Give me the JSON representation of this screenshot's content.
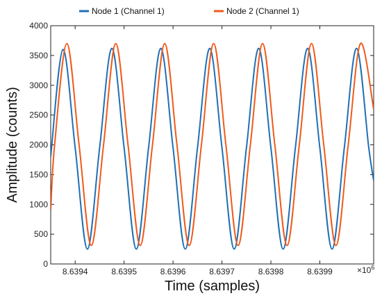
{
  "chart_data": {
    "type": "line",
    "title": "",
    "xlabel": "Time (samples)",
    "ylabel": "Amplitude (counts)",
    "x_multiplier_label": "×10",
    "x_multiplier_exponent": "6",
    "xlim": [
      8.63935,
      8.64001
    ],
    "ylim": [
      0,
      4000
    ],
    "x_ticks": [
      8.6394,
      8.6395,
      8.6396,
      8.6397,
      8.6398,
      8.6399
    ],
    "x_tick_labels": [
      "8.6394",
      "8.6395",
      "8.6396",
      "8.6397",
      "8.6398",
      "8.6399"
    ],
    "y_ticks": [
      0,
      500,
      1000,
      1500,
      2000,
      2500,
      3000,
      3500,
      4000
    ],
    "y_tick_labels": [
      "0",
      "500",
      "1000",
      "1500",
      "2000",
      "2500",
      "3000",
      "3500",
      "4000"
    ],
    "grid": false,
    "legend_position": "top",
    "series": [
      {
        "name": "Node 1 (Channel 1)",
        "color": "#1f6fb5",
        "x": [
          8.63935,
          8.639375,
          8.6394,
          8.639425,
          8.63945,
          8.639475,
          8.6395,
          8.639525,
          8.63955,
          8.639575,
          8.6396,
          8.639625,
          8.63965,
          8.639675,
          8.6397,
          8.639725,
          8.63975,
          8.639775,
          8.6398,
          8.639825,
          8.63985,
          8.639875,
          8.6399,
          8.639925,
          8.63995,
          8.639975,
          8.64,
          8.64001
        ],
        "y": [
          1800,
          3600,
          1950,
          250,
          1950,
          3620,
          1950,
          250,
          1950,
          3620,
          1950,
          250,
          1950,
          3620,
          1950,
          250,
          1950,
          3620,
          1950,
          250,
          1950,
          3620,
          1950,
          250,
          1950,
          3620,
          1950,
          1400
        ]
      },
      {
        "name": "Node 2 (Channel 1)",
        "color": "#f05a1a",
        "x": [
          8.63935,
          8.639358,
          8.639383,
          8.639408,
          8.639433,
          8.639458,
          8.639483,
          8.639508,
          8.639533,
          8.639558,
          8.639583,
          8.639608,
          8.639633,
          8.639658,
          8.639683,
          8.639708,
          8.639733,
          8.639758,
          8.639783,
          8.639808,
          8.639833,
          8.639858,
          8.639883,
          8.639908,
          8.639933,
          8.639958,
          8.639983,
          8.64001
        ],
        "y": [
          900,
          2000,
          3700,
          2000,
          310,
          2000,
          3700,
          2000,
          310,
          2000,
          3700,
          2000,
          310,
          2000,
          3700,
          2000,
          310,
          2000,
          3700,
          2000,
          310,
          2000,
          3700,
          2000,
          310,
          2000,
          3700,
          2600
        ]
      }
    ]
  }
}
